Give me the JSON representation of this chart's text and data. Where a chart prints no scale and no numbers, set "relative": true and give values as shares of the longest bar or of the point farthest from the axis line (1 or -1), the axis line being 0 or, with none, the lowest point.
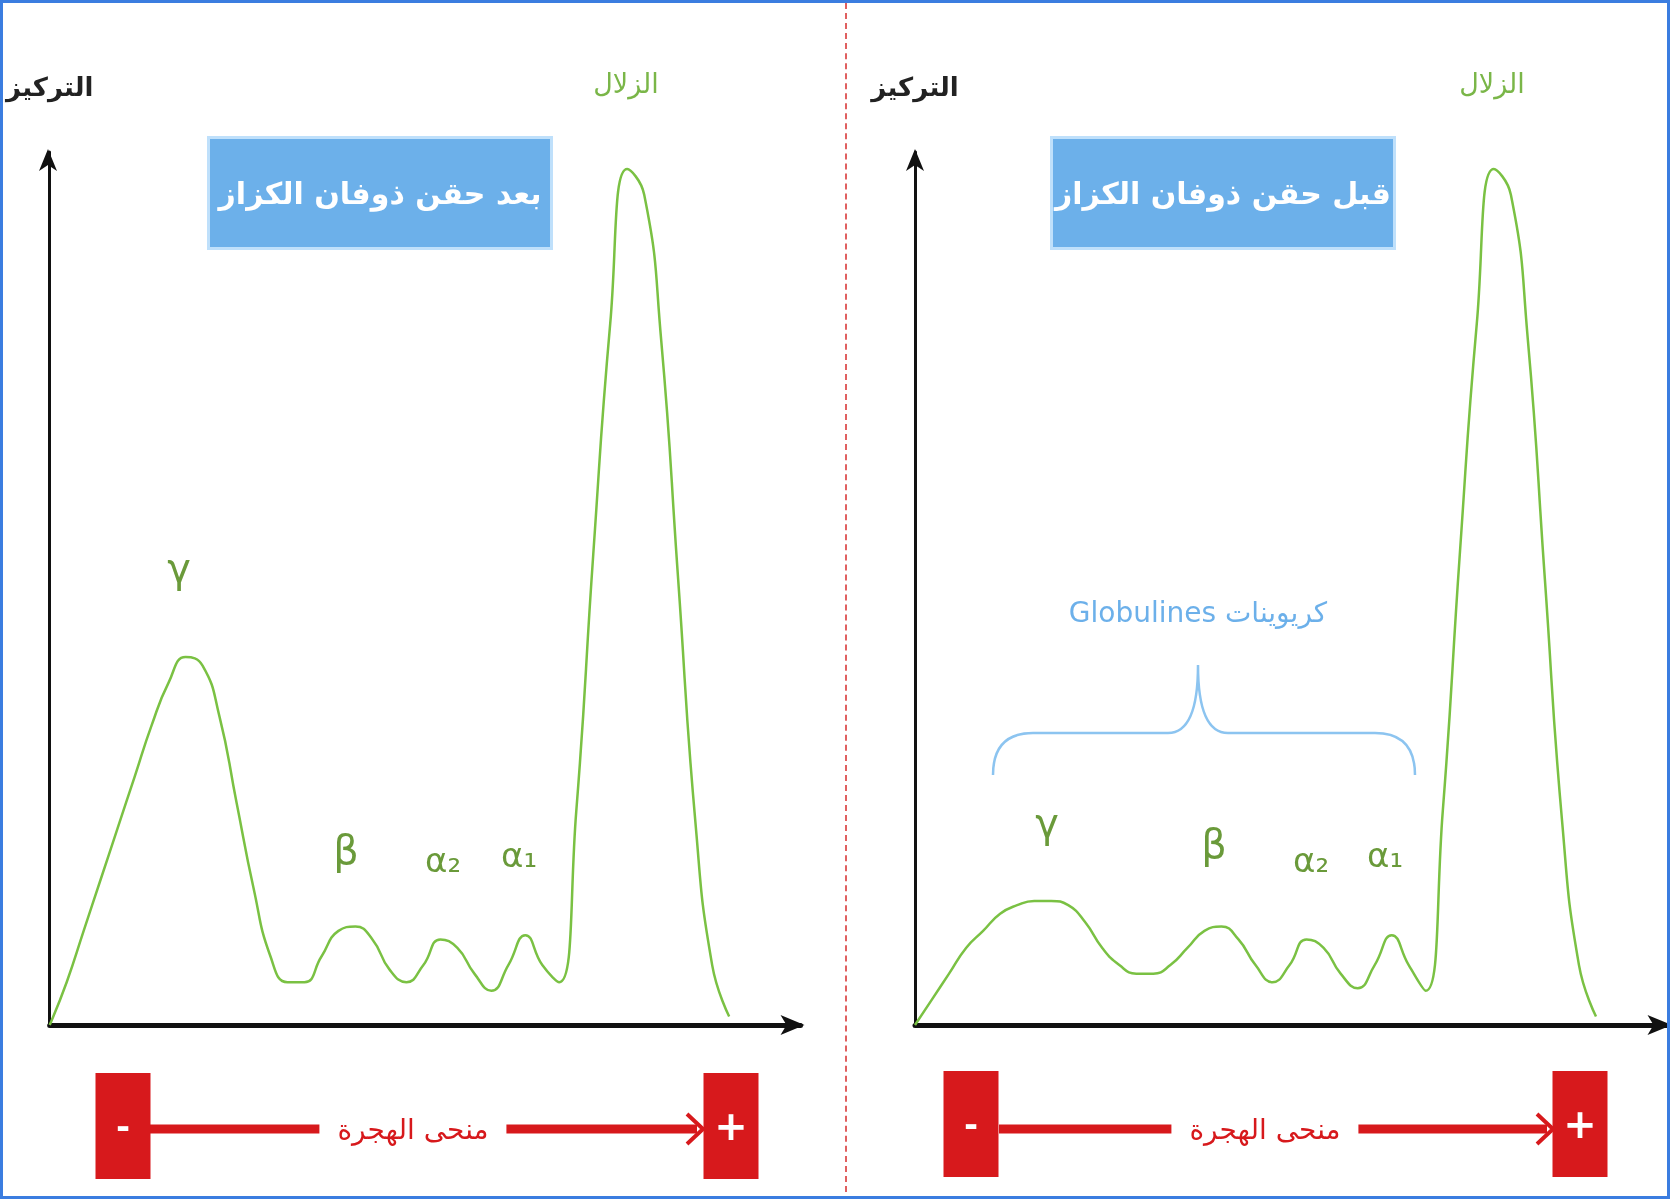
{
  "chart_data": [
    {
      "type": "line",
      "title": "بعد حقن ذوفان الكزاز",
      "ylabel": "التركيز",
      "relative": true,
      "marker": "none",
      "categories": [
        null,
        null,
        null,
        null,
        null,
        null,
        null,
        null,
        null,
        null,
        null,
        null,
        null,
        null,
        null,
        null,
        null,
        null,
        null,
        null,
        null,
        null,
        null,
        null,
        null,
        null,
        null,
        null,
        null,
        null,
        null,
        null,
        null,
        null,
        null,
        null,
        null,
        null,
        null,
        null,
        null
      ],
      "series": [
        {
          "color": "#7ac143",
          "values": [
            0,
            0.05,
            0.11,
            0.17,
            0.23,
            0.29,
            0.35,
            0.4,
            0.43,
            0.42,
            0.36,
            0.26,
            0.16,
            0.08,
            0.05,
            0.05,
            0.08,
            0.11,
            0.115,
            0.1,
            0.065,
            0.05,
            0.07,
            0.1,
            0.09,
            0.06,
            0.04,
            0.07,
            0.105,
            0.07,
            0.05,
            0.25,
            0.55,
            0.82,
            1,
            0.97,
            0.8,
            0.52,
            0.24,
            0.07,
            0.01
          ]
        }
      ],
      "annotations": [
        "الزلال",
        "γ",
        "β",
        "α₂",
        "α₁",
        "منحى الهجرة",
        "-",
        "+"
      ]
    },
    {
      "type": "line",
      "title": "قبل حقن ذوفان الكزاز",
      "ylabel": "التركيز",
      "relative": true,
      "marker": "none",
      "categories": [
        null,
        null,
        null,
        null,
        null,
        null,
        null,
        null,
        null,
        null,
        null,
        null,
        null,
        null,
        null,
        null,
        null,
        null,
        null,
        null,
        null,
        null,
        null,
        null,
        null,
        null,
        null,
        null,
        null,
        null,
        null,
        null,
        null,
        null,
        null,
        null,
        null,
        null,
        null,
        null,
        null
      ],
      "series": [
        {
          "color": "#7ac143",
          "values": [
            0,
            0.03,
            0.06,
            0.09,
            0.11,
            0.13,
            0.14,
            0.145,
            0.145,
            0.14,
            0.12,
            0.09,
            0.07,
            0.06,
            0.06,
            0.07,
            0.09,
            0.11,
            0.115,
            0.1,
            0.07,
            0.05,
            0.07,
            0.1,
            0.09,
            0.06,
            0.043,
            0.07,
            0.105,
            0.07,
            0.04,
            0.25,
            0.55,
            0.82,
            1,
            0.97,
            0.8,
            0.52,
            0.24,
            0.07,
            0.01
          ]
        }
      ],
      "annotations": [
        "الزلال",
        "γ",
        "β",
        "α₂",
        "α₁",
        "منحى الهجرة",
        "-",
        "+",
        "كريوينات Globulines"
      ]
    }
  ]
}
